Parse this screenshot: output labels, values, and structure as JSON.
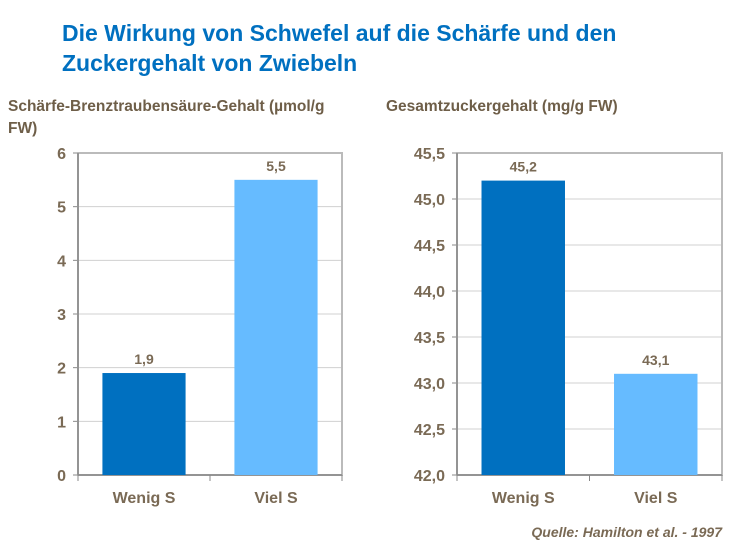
{
  "title": "Die Wirkung von Schwefel auf die Schärfe und den Zuckergehalt von Zwiebeln",
  "source": "Quelle: Hamilton et al. - 1997",
  "colors": {
    "title": "#0070C0",
    "bar_dark": "#0070C0",
    "bar_light": "#66BBFF",
    "text": "#7A6A55",
    "grid": "#D0D0D0"
  },
  "chart_data": [
    {
      "type": "bar",
      "title": "",
      "ylabel": "Schärfe-Brenztraubensäure-Gehalt (µmol/g FW)",
      "categories": [
        "Wenig S",
        "Viel S"
      ],
      "values": [
        1.9,
        5.5
      ],
      "value_labels": [
        "1,9",
        "5,5"
      ],
      "ylim": [
        0,
        6
      ],
      "yticks": [
        0,
        1,
        2,
        3,
        4,
        5,
        6
      ],
      "ytick_labels": [
        "0",
        "1",
        "2",
        "3",
        "4",
        "5",
        "6"
      ],
      "bar_colors": [
        "#0070C0",
        "#66BBFF"
      ],
      "grid": true
    },
    {
      "type": "bar",
      "title": "",
      "ylabel": "Gesamtzuckergehalt (mg/g FW)",
      "categories": [
        "Wenig S",
        "Viel S"
      ],
      "values": [
        45.2,
        43.1
      ],
      "value_labels": [
        "45,2",
        "43,1"
      ],
      "ylim": [
        42.0,
        45.5
      ],
      "yticks": [
        42.0,
        42.5,
        43.0,
        43.5,
        44.0,
        44.5,
        45.0,
        45.5
      ],
      "ytick_labels": [
        "42,0",
        "42,5",
        "43,0",
        "43,5",
        "44,0",
        "44,5",
        "45,0",
        "45,5"
      ],
      "bar_colors": [
        "#0070C0",
        "#66BBFF"
      ],
      "grid": true
    }
  ]
}
